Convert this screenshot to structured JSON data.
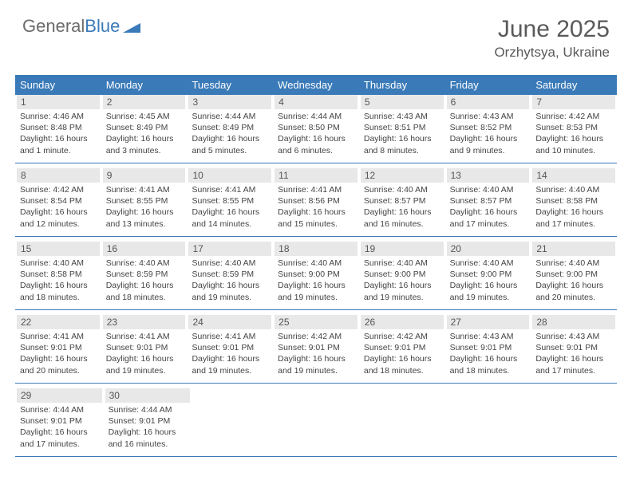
{
  "logo": {
    "text_gray": "General",
    "text_blue": "Blue"
  },
  "title": "June 2025",
  "location": "Orzhytsya, Ukraine",
  "colors": {
    "header_bg": "#3a7ab8",
    "header_text": "#ffffff",
    "daynum_bg": "#e8e8e8",
    "body_text": "#444444",
    "row_border": "#3a7ab8"
  },
  "day_names": [
    "Sunday",
    "Monday",
    "Tuesday",
    "Wednesday",
    "Thursday",
    "Friday",
    "Saturday"
  ],
  "weeks": [
    [
      {
        "n": "1",
        "sr": "4:46 AM",
        "ss": "8:48 PM",
        "dl": "16 hours and 1 minute."
      },
      {
        "n": "2",
        "sr": "4:45 AM",
        "ss": "8:49 PM",
        "dl": "16 hours and 3 minutes."
      },
      {
        "n": "3",
        "sr": "4:44 AM",
        "ss": "8:49 PM",
        "dl": "16 hours and 5 minutes."
      },
      {
        "n": "4",
        "sr": "4:44 AM",
        "ss": "8:50 PM",
        "dl": "16 hours and 6 minutes."
      },
      {
        "n": "5",
        "sr": "4:43 AM",
        "ss": "8:51 PM",
        "dl": "16 hours and 8 minutes."
      },
      {
        "n": "6",
        "sr": "4:43 AM",
        "ss": "8:52 PM",
        "dl": "16 hours and 9 minutes."
      },
      {
        "n": "7",
        "sr": "4:42 AM",
        "ss": "8:53 PM",
        "dl": "16 hours and 10 minutes."
      }
    ],
    [
      {
        "n": "8",
        "sr": "4:42 AM",
        "ss": "8:54 PM",
        "dl": "16 hours and 12 minutes."
      },
      {
        "n": "9",
        "sr": "4:41 AM",
        "ss": "8:55 PM",
        "dl": "16 hours and 13 minutes."
      },
      {
        "n": "10",
        "sr": "4:41 AM",
        "ss": "8:55 PM",
        "dl": "16 hours and 14 minutes."
      },
      {
        "n": "11",
        "sr": "4:41 AM",
        "ss": "8:56 PM",
        "dl": "16 hours and 15 minutes."
      },
      {
        "n": "12",
        "sr": "4:40 AM",
        "ss": "8:57 PM",
        "dl": "16 hours and 16 minutes."
      },
      {
        "n": "13",
        "sr": "4:40 AM",
        "ss": "8:57 PM",
        "dl": "16 hours and 17 minutes."
      },
      {
        "n": "14",
        "sr": "4:40 AM",
        "ss": "8:58 PM",
        "dl": "16 hours and 17 minutes."
      }
    ],
    [
      {
        "n": "15",
        "sr": "4:40 AM",
        "ss": "8:58 PM",
        "dl": "16 hours and 18 minutes."
      },
      {
        "n": "16",
        "sr": "4:40 AM",
        "ss": "8:59 PM",
        "dl": "16 hours and 18 minutes."
      },
      {
        "n": "17",
        "sr": "4:40 AM",
        "ss": "8:59 PM",
        "dl": "16 hours and 19 minutes."
      },
      {
        "n": "18",
        "sr": "4:40 AM",
        "ss": "9:00 PM",
        "dl": "16 hours and 19 minutes."
      },
      {
        "n": "19",
        "sr": "4:40 AM",
        "ss": "9:00 PM",
        "dl": "16 hours and 19 minutes."
      },
      {
        "n": "20",
        "sr": "4:40 AM",
        "ss": "9:00 PM",
        "dl": "16 hours and 19 minutes."
      },
      {
        "n": "21",
        "sr": "4:40 AM",
        "ss": "9:00 PM",
        "dl": "16 hours and 20 minutes."
      }
    ],
    [
      {
        "n": "22",
        "sr": "4:41 AM",
        "ss": "9:01 PM",
        "dl": "16 hours and 20 minutes."
      },
      {
        "n": "23",
        "sr": "4:41 AM",
        "ss": "9:01 PM",
        "dl": "16 hours and 19 minutes."
      },
      {
        "n": "24",
        "sr": "4:41 AM",
        "ss": "9:01 PM",
        "dl": "16 hours and 19 minutes."
      },
      {
        "n": "25",
        "sr": "4:42 AM",
        "ss": "9:01 PM",
        "dl": "16 hours and 19 minutes."
      },
      {
        "n": "26",
        "sr": "4:42 AM",
        "ss": "9:01 PM",
        "dl": "16 hours and 18 minutes."
      },
      {
        "n": "27",
        "sr": "4:43 AM",
        "ss": "9:01 PM",
        "dl": "16 hours and 18 minutes."
      },
      {
        "n": "28",
        "sr": "4:43 AM",
        "ss": "9:01 PM",
        "dl": "16 hours and 17 minutes."
      }
    ],
    [
      {
        "n": "29",
        "sr": "4:44 AM",
        "ss": "9:01 PM",
        "dl": "16 hours and 17 minutes."
      },
      {
        "n": "30",
        "sr": "4:44 AM",
        "ss": "9:01 PM",
        "dl": "16 hours and 16 minutes."
      },
      null,
      null,
      null,
      null,
      null
    ]
  ],
  "labels": {
    "sunrise": "Sunrise: ",
    "sunset": "Sunset: ",
    "daylight": "Daylight: "
  }
}
